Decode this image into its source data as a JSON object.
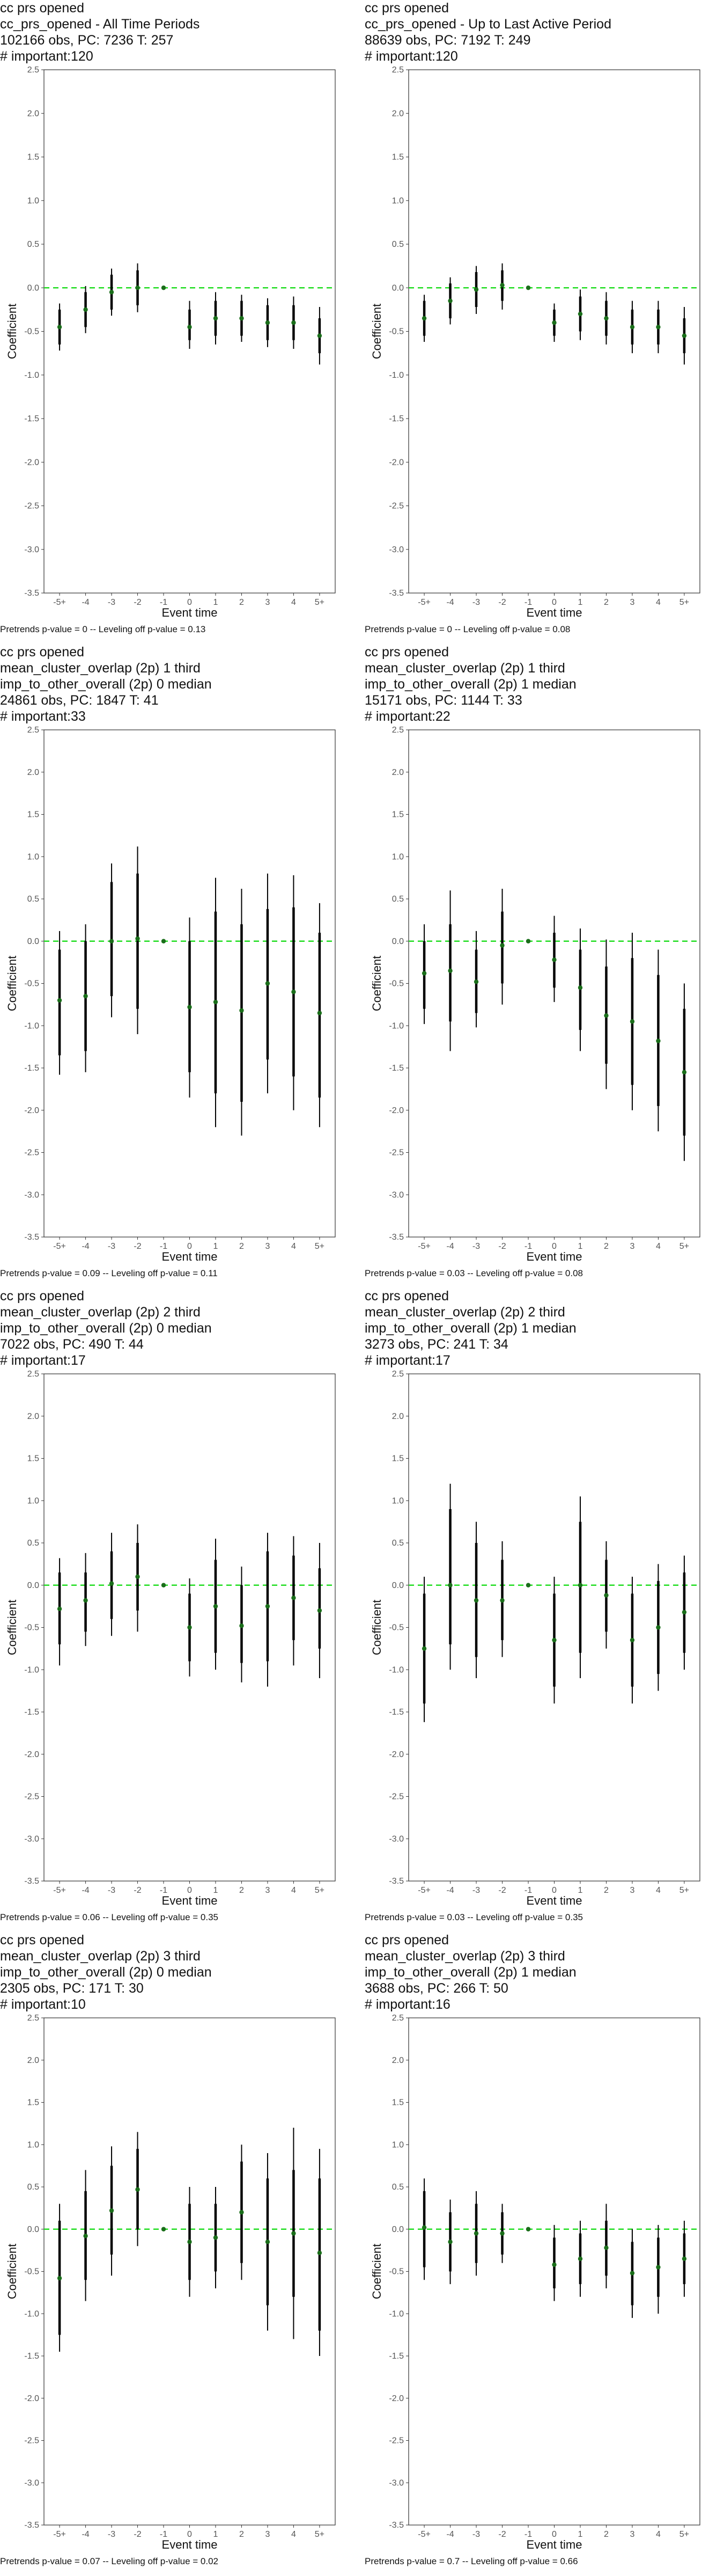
{
  "chart_data": [
    {
      "type": "scatter",
      "title_lines": [
        "cc prs opened",
        "cc_prs_opened - All Time Periods",
        "102166 obs, PC: 7236 T: 257",
        "# important:120"
      ],
      "xlabel": "Event time",
      "ylabel": "Coefficient",
      "categories": [
        "-5+",
        "-4",
        "-3",
        "-2",
        "-1",
        "0",
        "1",
        "2",
        "3",
        "4",
        "5+"
      ],
      "ylim": [
        -3.5,
        2.5
      ],
      "yticks": [
        "-3.5",
        "-3.0",
        "-2.5",
        "-2.0",
        "-1.5",
        "-1.0",
        "-0.5",
        "0.0",
        "0.5",
        "1.0",
        "1.5",
        "2.0",
        "2.5"
      ],
      "series": [
        {
          "estimate": [
            -0.45,
            -0.25,
            -0.05,
            0.0,
            0.0,
            -0.45,
            -0.35,
            -0.35,
            -0.4,
            -0.4,
            -0.55
          ],
          "ci90_low": [
            -0.65,
            -0.45,
            -0.25,
            -0.2,
            0,
            -0.6,
            -0.55,
            -0.55,
            -0.6,
            -0.6,
            -0.75
          ],
          "ci90_high": [
            -0.25,
            -0.05,
            0.15,
            0.2,
            0,
            -0.25,
            -0.15,
            -0.15,
            -0.2,
            -0.2,
            -0.35
          ],
          "ci95_low": [
            -0.72,
            -0.52,
            -0.32,
            -0.28,
            0,
            -0.7,
            -0.65,
            -0.62,
            -0.68,
            -0.7,
            -0.88
          ],
          "ci95_high": [
            -0.18,
            0.02,
            0.22,
            0.28,
            0,
            -0.15,
            -0.05,
            -0.08,
            -0.12,
            -0.1,
            -0.22
          ]
        }
      ],
      "footnote": "Pretrends p-value = 0 -- Leveling off p-value = 0.13"
    },
    {
      "type": "scatter",
      "title_lines": [
        "cc prs opened",
        "cc_prs_opened - Up to Last Active Period",
        "88639 obs, PC: 7192 T: 249",
        "# important:120"
      ],
      "xlabel": "Event time",
      "ylabel": "Coefficient",
      "categories": [
        "-5+",
        "-4",
        "-3",
        "-2",
        "-1",
        "0",
        "1",
        "2",
        "3",
        "4",
        "5+"
      ],
      "ylim": [
        -3.5,
        2.5
      ],
      "yticks": [
        "-3.5",
        "-3.0",
        "-2.5",
        "-2.0",
        "-1.5",
        "-1.0",
        "-0.5",
        "0.0",
        "0.5",
        "1.0",
        "1.5",
        "2.0",
        "2.5"
      ],
      "series": [
        {
          "estimate": [
            -0.35,
            -0.15,
            -0.02,
            0.03,
            0.0,
            -0.4,
            -0.3,
            -0.35,
            -0.45,
            -0.45,
            -0.55
          ],
          "ci90_low": [
            -0.55,
            -0.35,
            -0.22,
            -0.15,
            0,
            -0.55,
            -0.5,
            -0.55,
            -0.65,
            -0.65,
            -0.75
          ],
          "ci90_high": [
            -0.15,
            0.05,
            0.18,
            0.2,
            0,
            -0.25,
            -0.1,
            -0.15,
            -0.25,
            -0.25,
            -0.35
          ],
          "ci95_low": [
            -0.62,
            -0.42,
            -0.3,
            -0.25,
            0,
            -0.62,
            -0.6,
            -0.65,
            -0.75,
            -0.75,
            -0.88
          ],
          "ci95_high": [
            -0.08,
            0.12,
            0.25,
            0.28,
            0,
            -0.18,
            -0.02,
            -0.05,
            -0.15,
            -0.15,
            -0.22
          ]
        }
      ],
      "footnote": "Pretrends p-value = 0 -- Leveling off p-value = 0.08"
    },
    {
      "type": "scatter",
      "title_lines": [
        "cc prs opened",
        "mean_cluster_overlap (2p) 1 third",
        "imp_to_other_overall (2p) 0 median",
        "24861 obs, PC: 1847 T: 41",
        "# important:33"
      ],
      "xlabel": "Event time",
      "ylabel": "Coefficient",
      "categories": [
        "-5+",
        "-4",
        "-3",
        "-2",
        "-1",
        "0",
        "1",
        "2",
        "3",
        "4",
        "5+"
      ],
      "ylim": [
        -3.5,
        2.5
      ],
      "yticks": [
        "-3.5",
        "-3.0",
        "-2.5",
        "-2.0",
        "-1.5",
        "-1.0",
        "-0.5",
        "0.0",
        "0.5",
        "1.0",
        "1.5",
        "2.0",
        "2.5"
      ],
      "series": [
        {
          "estimate": [
            -0.7,
            -0.65,
            0.0,
            0.03,
            0.0,
            -0.78,
            -0.72,
            -0.82,
            -0.5,
            -0.6,
            -0.85
          ],
          "ci90_low": [
            -1.35,
            -1.3,
            -0.65,
            -0.8,
            0,
            -1.55,
            -1.8,
            -1.9,
            -1.4,
            -1.6,
            -1.85
          ],
          "ci90_high": [
            -0.1,
            0.0,
            0.7,
            0.8,
            0,
            0.0,
            0.35,
            0.2,
            0.38,
            0.4,
            0.1
          ],
          "ci95_low": [
            -1.58,
            -1.55,
            -0.9,
            -1.1,
            0,
            -1.85,
            -2.2,
            -2.3,
            -1.8,
            -2.0,
            -2.2
          ],
          "ci95_high": [
            0.12,
            0.2,
            0.92,
            1.12,
            0,
            0.28,
            0.75,
            0.62,
            0.8,
            0.78,
            0.45
          ]
        }
      ],
      "footnote": "Pretrends p-value = 0.09 -- Leveling off p-value = 0.11"
    },
    {
      "type": "scatter",
      "title_lines": [
        "cc prs opened",
        "mean_cluster_overlap (2p) 1 third",
        "imp_to_other_overall (2p) 1 median",
        "15171 obs, PC: 1144 T: 33",
        "# important:22"
      ],
      "xlabel": "Event time",
      "ylabel": "Coefficient",
      "categories": [
        "-5+",
        "-4",
        "-3",
        "-2",
        "-1",
        "0",
        "1",
        "2",
        "3",
        "4",
        "5+"
      ],
      "ylim": [
        -3.5,
        2.5
      ],
      "yticks": [
        "-3.5",
        "-3.0",
        "-2.5",
        "-2.0",
        "-1.5",
        "-1.0",
        "-0.5",
        "0.0",
        "0.5",
        "1.0",
        "1.5",
        "2.0",
        "2.5"
      ],
      "series": [
        {
          "estimate": [
            -0.38,
            -0.35,
            -0.48,
            -0.05,
            0.0,
            -0.22,
            -0.55,
            -0.88,
            -0.95,
            -1.18,
            -1.55
          ],
          "ci90_low": [
            -0.8,
            -0.95,
            -0.85,
            -0.5,
            0,
            -0.55,
            -1.05,
            -1.45,
            -1.7,
            -1.95,
            -2.3
          ],
          "ci90_high": [
            0.0,
            0.2,
            -0.1,
            0.35,
            0,
            0.1,
            -0.1,
            -0.3,
            -0.2,
            -0.4,
            -0.8
          ],
          "ci95_low": [
            -0.98,
            -1.3,
            -1.02,
            -0.75,
            0,
            -0.72,
            -1.3,
            -1.75,
            -2.0,
            -2.25,
            -2.6
          ],
          "ci95_high": [
            0.2,
            0.6,
            0.12,
            0.62,
            0,
            0.3,
            0.15,
            0.02,
            0.1,
            -0.1,
            -0.5
          ]
        }
      ],
      "footnote": "Pretrends p-value = 0.03 -- Leveling off p-value = 0.08"
    },
    {
      "type": "scatter",
      "title_lines": [
        "cc prs opened",
        "mean_cluster_overlap (2p) 2 third",
        "imp_to_other_overall (2p) 0 median",
        "7022 obs, PC: 490 T: 44",
        "# important:17"
      ],
      "xlabel": "Event time",
      "ylabel": "Coefficient",
      "categories": [
        "-5+",
        "-4",
        "-3",
        "-2",
        "-1",
        "0",
        "1",
        "2",
        "3",
        "4",
        "5+"
      ],
      "ylim": [
        -3.5,
        2.5
      ],
      "yticks": [
        "-3.5",
        "-3.0",
        "-2.5",
        "-2.0",
        "-1.5",
        "-1.0",
        "-0.5",
        "0.0",
        "0.5",
        "1.0",
        "1.5",
        "2.0",
        "2.5"
      ],
      "series": [
        {
          "estimate": [
            -0.28,
            -0.18,
            0.02,
            0.1,
            0.0,
            -0.5,
            -0.25,
            -0.48,
            -0.25,
            -0.15,
            -0.3
          ],
          "ci90_low": [
            -0.7,
            -0.55,
            -0.4,
            -0.3,
            0,
            -0.9,
            -0.8,
            -0.92,
            -0.9,
            -0.65,
            -0.75
          ],
          "ci90_high": [
            0.15,
            0.15,
            0.4,
            0.5,
            0,
            -0.1,
            0.3,
            0.0,
            0.4,
            0.35,
            0.2
          ],
          "ci95_low": [
            -0.95,
            -0.72,
            -0.6,
            -0.55,
            0,
            -1.08,
            -1.0,
            -1.15,
            -1.2,
            -0.95,
            -1.1
          ],
          "ci95_high": [
            0.32,
            0.38,
            0.62,
            0.72,
            0,
            0.08,
            0.55,
            0.22,
            0.62,
            0.58,
            0.5
          ]
        }
      ],
      "footnote": "Pretrends p-value = 0.06 -- Leveling off p-value = 0.35"
    },
    {
      "type": "scatter",
      "title_lines": [
        "cc prs opened",
        "mean_cluster_overlap (2p) 2 third",
        "imp_to_other_overall (2p) 1 median",
        "3273 obs, PC: 241 T: 34",
        "# important:17"
      ],
      "xlabel": "Event time",
      "ylabel": "Coefficient",
      "categories": [
        "-5+",
        "-4",
        "-3",
        "-2",
        "-1",
        "0",
        "1",
        "2",
        "3",
        "4",
        "5+"
      ],
      "ylim": [
        -3.5,
        2.5
      ],
      "yticks": [
        "-3.5",
        "-3.0",
        "-2.5",
        "-2.0",
        "-1.5",
        "-1.0",
        "-0.5",
        "0.0",
        "0.5",
        "1.0",
        "1.5",
        "2.0",
        "2.5"
      ],
      "series": [
        {
          "estimate": [
            -0.75,
            0.0,
            -0.18,
            -0.18,
            0.0,
            -0.65,
            0.0,
            -0.12,
            -0.65,
            -0.5,
            -0.32
          ],
          "ci90_low": [
            -1.4,
            -0.7,
            -0.85,
            -0.65,
            0,
            -1.2,
            -0.8,
            -0.55,
            -1.2,
            -1.05,
            -0.8
          ],
          "ci90_high": [
            -0.1,
            0.9,
            0.5,
            0.3,
            0,
            -0.1,
            0.75,
            0.3,
            -0.1,
            0.05,
            0.15
          ],
          "ci95_low": [
            -1.62,
            -1.0,
            -1.1,
            -0.85,
            0,
            -1.4,
            -1.1,
            -0.75,
            -1.4,
            -1.25,
            -1.0
          ],
          "ci95_high": [
            0.1,
            1.2,
            0.75,
            0.52,
            0,
            0.1,
            1.05,
            0.52,
            0.1,
            0.25,
            0.35
          ]
        }
      ],
      "footnote": "Pretrends p-value = 0.03 -- Leveling off p-value = 0.35"
    },
    {
      "type": "scatter",
      "title_lines": [
        "cc prs opened",
        "mean_cluster_overlap (2p) 3 third",
        "imp_to_other_overall (2p) 0 median",
        "2305 obs, PC: 171 T: 30",
        "# important:10"
      ],
      "xlabel": "Event time",
      "ylabel": "Coefficient",
      "categories": [
        "-5+",
        "-4",
        "-3",
        "-2",
        "-1",
        "0",
        "1",
        "2",
        "3",
        "4",
        "5+"
      ],
      "ylim": [
        -3.5,
        2.5
      ],
      "yticks": [
        "-3.5",
        "-3.0",
        "-2.5",
        "-2.0",
        "-1.5",
        "-1.0",
        "-0.5",
        "0.0",
        "0.5",
        "1.0",
        "1.5",
        "2.0",
        "2.5"
      ],
      "series": [
        {
          "estimate": [
            -0.58,
            -0.08,
            0.22,
            0.47,
            0.0,
            -0.15,
            -0.1,
            0.2,
            -0.15,
            -0.05,
            -0.28
          ],
          "ci90_low": [
            -1.25,
            -0.6,
            -0.3,
            0.0,
            0,
            -0.6,
            -0.5,
            -0.4,
            -0.9,
            -0.8,
            -1.2
          ],
          "ci90_high": [
            0.1,
            0.45,
            0.75,
            0.95,
            0,
            0.3,
            0.3,
            0.8,
            0.6,
            0.7,
            0.6
          ],
          "ci95_low": [
            -1.45,
            -0.85,
            -0.55,
            -0.2,
            0,
            -0.8,
            -0.7,
            -0.6,
            -1.2,
            -1.3,
            -1.5
          ],
          "ci95_high": [
            0.3,
            0.7,
            0.98,
            1.15,
            0,
            0.5,
            0.5,
            1.0,
            0.9,
            1.2,
            0.95
          ]
        }
      ],
      "footnote": "Pretrends p-value = 0.07 -- Leveling off p-value = 0.02"
    },
    {
      "type": "scatter",
      "title_lines": [
        "cc prs opened",
        "mean_cluster_overlap (2p) 3 third",
        "imp_to_other_overall (2p) 1 median",
        "3688 obs, PC: 266 T: 50",
        "# important:16"
      ],
      "xlabel": "Event time",
      "ylabel": "Coefficient",
      "categories": [
        "-5+",
        "-4",
        "-3",
        "-2",
        "-1",
        "0",
        "1",
        "2",
        "3",
        "4",
        "5+"
      ],
      "ylim": [
        -3.5,
        2.5
      ],
      "yticks": [
        "-3.5",
        "-3.0",
        "-2.5",
        "-2.0",
        "-1.5",
        "-1.0",
        "-0.5",
        "0.0",
        "0.5",
        "1.0",
        "1.5",
        "2.0",
        "2.5"
      ],
      "series": [
        {
          "estimate": [
            0.02,
            -0.15,
            -0.05,
            -0.05,
            0.0,
            -0.42,
            -0.35,
            -0.22,
            -0.52,
            -0.45,
            -0.35
          ],
          "ci90_low": [
            -0.45,
            -0.5,
            -0.4,
            -0.3,
            0,
            -0.7,
            -0.65,
            -0.55,
            -0.9,
            -0.8,
            -0.65
          ],
          "ci90_high": [
            0.45,
            0.2,
            0.3,
            0.2,
            0,
            -0.1,
            -0.05,
            0.1,
            -0.15,
            -0.1,
            -0.05
          ],
          "ci95_low": [
            -0.6,
            -0.65,
            -0.55,
            -0.4,
            0,
            -0.85,
            -0.8,
            -0.7,
            -1.05,
            -1.0,
            -0.8
          ],
          "ci95_high": [
            0.6,
            0.35,
            0.45,
            0.3,
            0,
            0.05,
            0.1,
            0.3,
            0.0,
            0.05,
            0.1
          ]
        }
      ],
      "footnote": "Pretrends p-value = 0.7 -- Leveling off p-value = 0.66"
    }
  ],
  "colors": {
    "point": "#1a6e1a",
    "zero_line": "#22dd22",
    "bar": "#000000",
    "axis": "#333333"
  }
}
